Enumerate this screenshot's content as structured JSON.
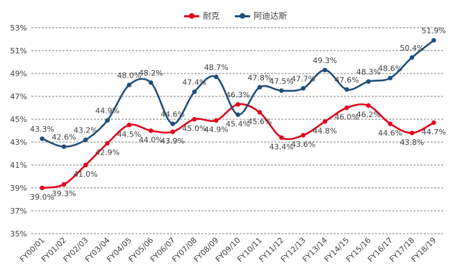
{
  "chart_data": {
    "type": "line",
    "title": "",
    "xlabel": "",
    "ylabel": "",
    "ylim": [
      35,
      53
    ],
    "yticks": [
      35,
      37,
      39,
      41,
      43,
      45,
      47,
      49,
      51,
      53
    ],
    "ytick_labels": [
      "35%",
      "37%",
      "39%",
      "41%",
      "43%",
      "45%",
      "47%",
      "49%",
      "51%",
      "53%"
    ],
    "grid": "horizontal dashed",
    "legend_position": "top-center",
    "categories": [
      "FY00/01",
      "FY01/02",
      "FY02/03",
      "FY03/04",
      "FY04/05",
      "FY05/06",
      "FY06/07",
      "FY07/08",
      "FY08/09",
      "FY09/10",
      "FY10/11",
      "FY11/12",
      "FY12/13",
      "FY13/14",
      "FY14/15",
      "FY15/16",
      "FY16/17",
      "FY17/18",
      "FY18/19"
    ],
    "series": [
      {
        "name": "耐克",
        "color": "#e3001b",
        "values": [
          39.0,
          39.3,
          41.0,
          42.9,
          44.5,
          44.0,
          43.9,
          45.0,
          44.9,
          46.3,
          45.6,
          43.4,
          43.6,
          44.8,
          46.0,
          46.2,
          44.6,
          43.8,
          44.7
        ],
        "labels": [
          "39.0%",
          "39.3%",
          "41.0%",
          "42.9%",
          "44.5%",
          "44.0%",
          "43.9%",
          "45.0%",
          "44.9%",
          "46.3%",
          "45.6%",
          "43.4%",
          "43.6%",
          "44.8%",
          "46.0%",
          "46.2%",
          "44.6%",
          "43.8%",
          "44.7%"
        ]
      },
      {
        "name": "阿迪达斯",
        "color": "#1f4e79",
        "values": [
          43.3,
          42.6,
          43.2,
          44.9,
          48.0,
          48.2,
          44.6,
          47.4,
          48.7,
          45.4,
          47.8,
          47.5,
          47.7,
          49.3,
          47.6,
          48.3,
          48.6,
          50.4,
          51.9
        ],
        "labels": [
          "43.3%",
          "42.6%",
          "43.2%",
          "44.9%",
          "48.0%",
          "48.2%",
          "44.6%",
          "47.4%",
          "48.7%",
          "45.4%",
          "47.8%",
          "47.5%",
          "47.7%",
          "49.3%",
          "47.6%",
          "48.3%",
          "48.6%",
          "50.4%",
          "51.9%"
        ]
      }
    ]
  }
}
